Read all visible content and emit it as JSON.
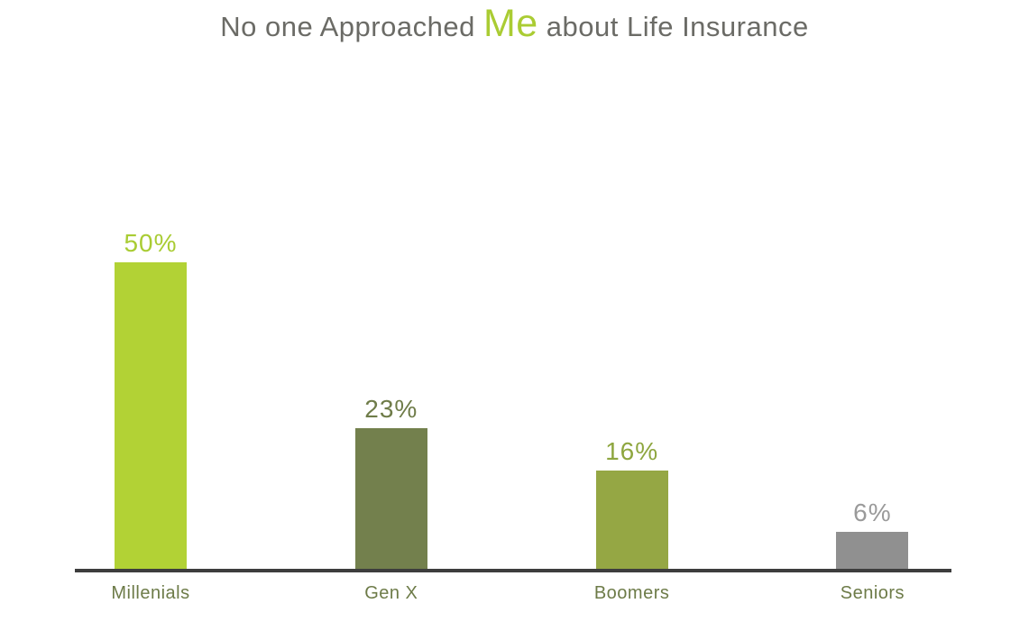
{
  "title": {
    "prefix": "No one Approached ",
    "highlight": "Me",
    "suffix": " about Life Insurance"
  },
  "colors": {
    "title_text": "#6b6b66",
    "title_highlight": "#aacc33",
    "axis_line": "#3d3d3d",
    "category_label": "#6d7b48",
    "background": "#ffffff"
  },
  "chart_data": {
    "type": "bar",
    "title": "No one Approached Me about Life Insurance",
    "categories": [
      "Millenials",
      "Gen X",
      "Boomers",
      "Seniors"
    ],
    "values": [
      50,
      23,
      16,
      6
    ],
    "value_labels": [
      "50%",
      "23%",
      "16%",
      "6%"
    ],
    "bar_colors": [
      "#b2d235",
      "#73804d",
      "#95a744",
      "#909090"
    ],
    "label_colors": [
      "#a9cc33",
      "#6f7c49",
      "#8ea63f",
      "#9a9a9a"
    ],
    "xlabel": "",
    "ylabel": "",
    "ylim": [
      0,
      50
    ],
    "grid": false,
    "legend": false,
    "value_suffix": "%"
  }
}
